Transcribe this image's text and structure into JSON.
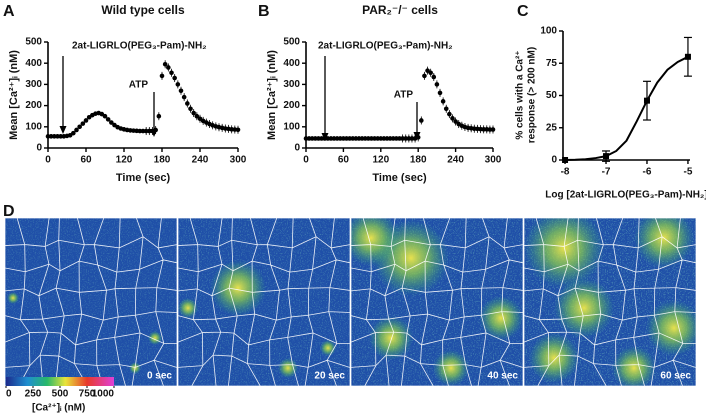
{
  "chart_data": [
    {
      "type": "line",
      "panel": "A",
      "title": "Wild type cells",
      "xlabel": "Time (sec)",
      "ylabel": "Mean [Ca²⁺]ᵢ (nM)",
      "annotations": [
        "2at-LIGRLO(PEG₃-Pam)-NH₂",
        "ATP"
      ],
      "x": [
        0,
        5,
        10,
        15,
        20,
        25,
        30,
        35,
        40,
        45,
        50,
        55,
        60,
        65,
        70,
        75,
        80,
        85,
        90,
        95,
        100,
        105,
        110,
        115,
        120,
        125,
        130,
        135,
        140,
        145,
        150,
        155,
        160,
        165,
        170,
        175,
        180,
        185,
        190,
        195,
        200,
        205,
        210,
        215,
        220,
        225,
        230,
        235,
        240,
        245,
        250,
        255,
        260,
        265,
        270,
        275,
        280,
        285,
        290,
        295,
        300
      ],
      "series": [
        {
          "color": "#000000",
          "values": [
            55,
            55,
            55,
            55,
            55,
            55,
            57,
            60,
            70,
            85,
            100,
            115,
            130,
            145,
            155,
            162,
            165,
            160,
            150,
            135,
            120,
            108,
            98,
            92,
            88,
            85,
            83,
            82,
            81,
            80,
            80,
            80,
            80,
            80,
            85,
            150,
            340,
            395,
            380,
            355,
            330,
            300,
            270,
            240,
            210,
            185,
            165,
            150,
            138,
            128,
            120,
            113,
            107,
            102,
            98,
            95,
            92,
            90,
            88,
            87,
            86
          ]
        }
      ],
      "xlim": [
        0,
        300
      ],
      "xticks": [
        0,
        60,
        120,
        180,
        240,
        300
      ],
      "ylim": [
        0,
        500
      ],
      "yticks": [
        0,
        100,
        200,
        300,
        400,
        500
      ]
    },
    {
      "type": "line",
      "panel": "B",
      "title": "PAR₂⁻/⁻ cells",
      "xlabel": "Time (sec)",
      "ylabel": "Mean [Ca²⁺]ᵢ (nM)",
      "annotations": [
        "2at-LIGRLO(PEG₃-Pam)-NH₂",
        "ATP"
      ],
      "x": [
        0,
        5,
        10,
        15,
        20,
        25,
        30,
        35,
        40,
        45,
        50,
        55,
        60,
        65,
        70,
        75,
        80,
        85,
        90,
        95,
        100,
        105,
        110,
        115,
        120,
        125,
        130,
        135,
        140,
        145,
        150,
        155,
        160,
        165,
        170,
        175,
        180,
        185,
        190,
        195,
        200,
        205,
        210,
        215,
        220,
        225,
        230,
        235,
        240,
        245,
        250,
        255,
        260,
        265,
        270,
        275,
        280,
        285,
        290,
        295,
        300
      ],
      "series": [
        {
          "color": "#000000",
          "values": [
            45,
            45,
            45,
            45,
            45,
            45,
            45,
            45,
            45,
            45,
            45,
            45,
            45,
            45,
            45,
            45,
            45,
            45,
            45,
            45,
            45,
            45,
            45,
            45,
            45,
            45,
            45,
            45,
            45,
            45,
            45,
            45,
            45,
            45,
            45,
            45,
            50,
            130,
            340,
            365,
            355,
            335,
            300,
            260,
            220,
            185,
            160,
            140,
            125,
            113,
            105,
            99,
            95,
            93,
            91,
            90,
            89,
            88,
            88,
            87,
            87
          ]
        }
      ],
      "xlim": [
        0,
        300
      ],
      "xticks": [
        0,
        60,
        120,
        180,
        240,
        300
      ],
      "ylim": [
        0,
        500
      ],
      "yticks": [
        0,
        100,
        200,
        300,
        400,
        500
      ]
    },
    {
      "type": "dose-response",
      "panel": "C",
      "xlabel": "Log [2at-LIGRLO(PEG₃-Pam)-NH₂]",
      "ylabel": [
        "% cells with a Ca²⁺",
        "response (> 200 nM)"
      ],
      "x": [
        -8,
        -7,
        -6,
        -5
      ],
      "series": [
        {
          "color": "#000000",
          "values": [
            0,
            3,
            46,
            80
          ],
          "errors": [
            0,
            4,
            15,
            15
          ]
        }
      ],
      "fit": {
        "x": [
          -8,
          -7.75,
          -7.5,
          -7.25,
          -7,
          -6.75,
          -6.5,
          -6.25,
          -6,
          -5.75,
          -5.5,
          -5.25,
          -5
        ],
        "values": [
          0,
          0.2,
          0.6,
          1.5,
          3,
          7,
          15,
          30,
          46,
          60,
          70,
          76,
          80
        ]
      },
      "xlim": [
        -8.05,
        -4.95
      ],
      "xticks": [
        -8,
        -7,
        -6,
        -5
      ],
      "ylim": [
        0,
        100
      ],
      "yticks": [
        0,
        25,
        50,
        75,
        100
      ]
    }
  ],
  "images": {
    "panel": "D",
    "frames": [
      "0 sec",
      "20 sec",
      "40 sec",
      "60 sec"
    ],
    "colorbar": {
      "lim": [
        0,
        1000
      ],
      "ticks": [
        0,
        250,
        500,
        750,
        1000
      ],
      "label": "[Ca²⁺]ᵢ (nM)"
    }
  }
}
